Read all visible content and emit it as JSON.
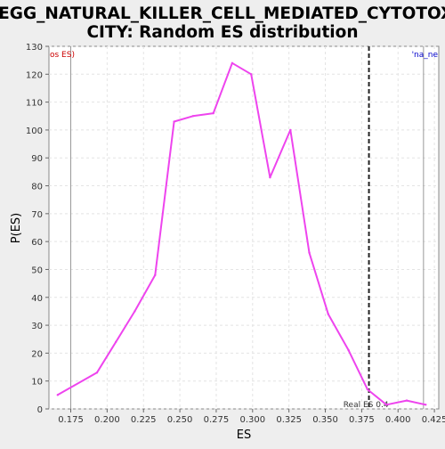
{
  "chart_data": {
    "type": "line",
    "title_line1": "KEGG_NATURAL_KILLER_CELL_MEDIATED_CYTOTOXI",
    "title_line2": "CITY: Random ES distribution",
    "xlabel": "ES",
    "ylabel": "P(ES)",
    "xlim": [
      0.16,
      0.428
    ],
    "ylim": [
      0,
      130
    ],
    "xticks": [
      "0.175",
      "0.200",
      "0.225",
      "0.250",
      "0.275",
      "0.300",
      "0.325",
      "0.350",
      "0.375",
      "0.400",
      "0.425"
    ],
    "yticks": [
      "0",
      "10",
      "20",
      "30",
      "40",
      "50",
      "60",
      "70",
      "80",
      "90",
      "100",
      "110",
      "120",
      "130"
    ],
    "grid": true,
    "series": [
      {
        "color": "#ee44ee",
        "x": [
          0.166,
          0.193,
          0.206,
          0.219,
          0.233,
          0.246,
          0.259,
          0.273,
          0.286,
          0.299,
          0.312,
          0.326,
          0.339,
          0.352,
          0.366,
          0.379,
          0.392,
          0.406,
          0.419
        ],
        "y": [
          5,
          13,
          24,
          35,
          48,
          103,
          105,
          106,
          124,
          120,
          83,
          100,
          56,
          34,
          21,
          7,
          1.5,
          3,
          1.5
        ]
      }
    ],
    "reference_lines": [
      {
        "x": 0.175,
        "style": "solid",
        "color": "#999999",
        "label": "os ES)",
        "label_color": "#cc0000"
      },
      {
        "x": 0.4175,
        "style": "solid",
        "color": "#999999",
        "label": "'na_ne",
        "label_color": "#0000cc"
      },
      {
        "x": 0.38,
        "style": "dashed",
        "color": "#222222",
        "label": "Real ES 0.4",
        "label_color": "#333333"
      }
    ]
  }
}
